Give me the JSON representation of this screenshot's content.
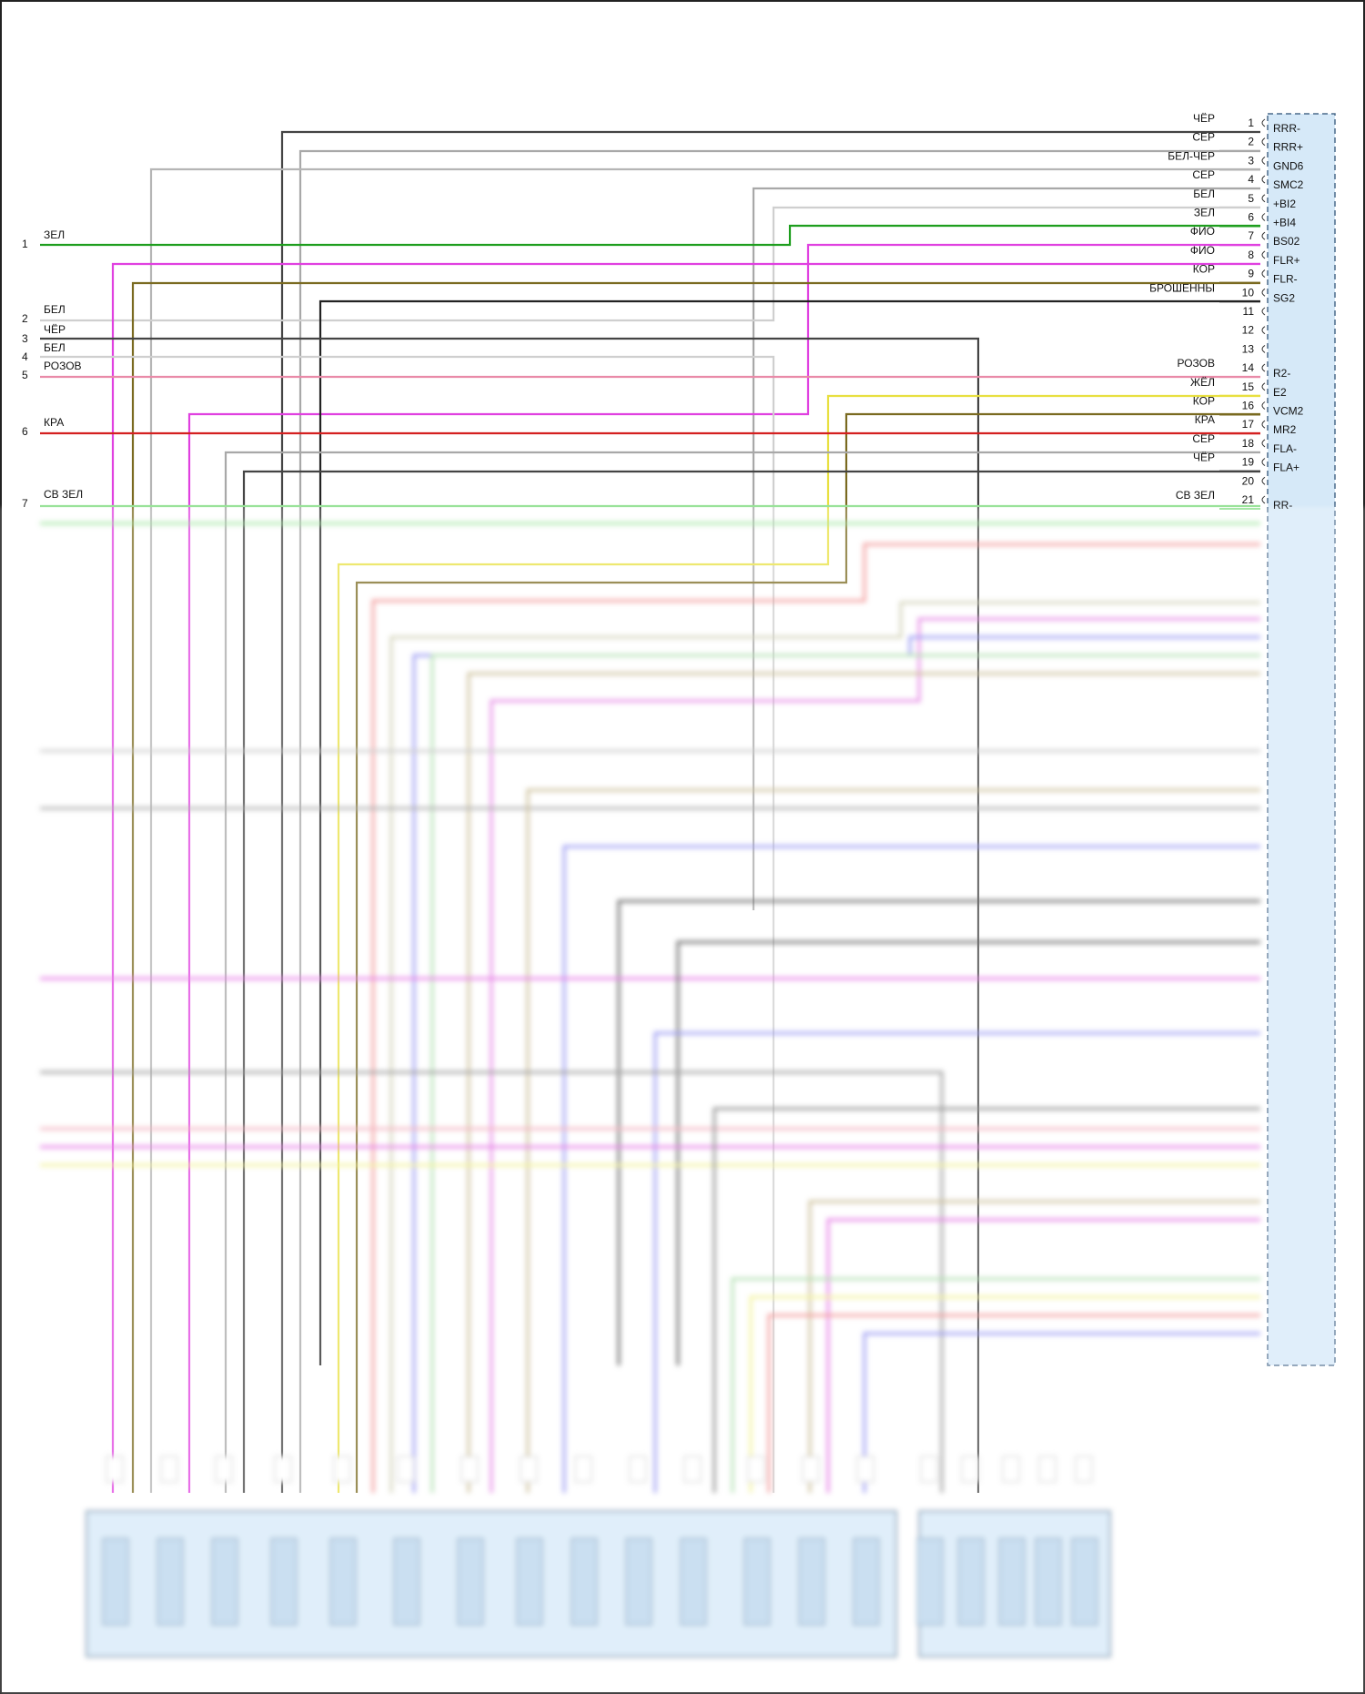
{
  "diagram": {
    "left_connector": {
      "wires": [
        {
          "pin": "1",
          "color_code": "ЗЕЛ",
          "wire_color": "#1e9e1e"
        },
        {
          "pin": "2",
          "color_code": "БЕЛ",
          "wire_color": "#cfcfcf"
        },
        {
          "pin": "3",
          "color_code": "ЧЁР",
          "wire_color": "#444444"
        },
        {
          "pin": "4",
          "color_code": "БЕЛ",
          "wire_color": "#cfcfcf"
        },
        {
          "pin": "5",
          "color_code": "РОЗОВ",
          "wire_color": "#e98aa8"
        },
        {
          "pin": "6",
          "color_code": "КРА",
          "wire_color": "#d42020"
        },
        {
          "pin": "7",
          "color_code": "СВ ЗЕЛ",
          "wire_color": "#8fe08f"
        }
      ]
    },
    "right_connector": {
      "pins": [
        {
          "pin": "1",
          "wire_label": "ЧЁР",
          "signal": "RRR-",
          "wire_color": "#444444"
        },
        {
          "pin": "2",
          "wire_label": "СЕР",
          "signal": "RRR+",
          "wire_color": "#a8a8a8"
        },
        {
          "pin": "3",
          "wire_label": "БЕЛ-ЧЕР",
          "signal": "GND6",
          "wire_color": "#9a9a9a"
        },
        {
          "pin": "4",
          "wire_label": "СЕР",
          "signal": "SMC2",
          "wire_color": "#a8a8a8"
        },
        {
          "pin": "5",
          "wire_label": "БЕЛ",
          "signal": "+BI2",
          "wire_color": "#cfcfcf"
        },
        {
          "pin": "6",
          "wire_label": "ЗЕЛ",
          "signal": "+BI4",
          "wire_color": "#1e9e1e"
        },
        {
          "pin": "7",
          "wire_label": "ФИО",
          "signal": "BS02",
          "wire_color": "#e040e0"
        },
        {
          "pin": "8",
          "wire_label": "ФИО",
          "signal": "FLR+",
          "wire_color": "#e040e0"
        },
        {
          "pin": "9",
          "wire_label": "КОР",
          "signal": "FLR-",
          "wire_color": "#7a6a20"
        },
        {
          "pin": "10",
          "wire_label": "БРОШЕННЫ",
          "signal": "SG2",
          "wire_color": "#222222"
        },
        {
          "pin": "11",
          "wire_label": "",
          "signal": ""
        },
        {
          "pin": "12",
          "wire_label": "",
          "signal": ""
        },
        {
          "pin": "13",
          "wire_label": "",
          "signal": ""
        },
        {
          "pin": "14",
          "wire_label": "РОЗОВ",
          "signal": "R2-",
          "wire_color": "#e98aa8"
        },
        {
          "pin": "15",
          "wire_label": "ЖЁЛ",
          "signal": "E2",
          "wire_color": "#e8e040"
        },
        {
          "pin": "16",
          "wire_label": "КОР",
          "signal": "VCM2",
          "wire_color": "#7a6a20"
        },
        {
          "pin": "17",
          "wire_label": "КРА",
          "signal": "MR2",
          "wire_color": "#d42020"
        },
        {
          "pin": "18",
          "wire_label": "СЕР",
          "signal": "FLA-",
          "wire_color": "#a8a8a8"
        },
        {
          "pin": "19",
          "wire_label": "ЧЁР",
          "signal": "FLA+",
          "wire_color": "#444444"
        },
        {
          "pin": "20",
          "wire_label": "",
          "signal": ""
        },
        {
          "pin": "21",
          "wire_label": "СВ ЗЕЛ",
          "signal": "RR-",
          "wire_color": "#8fe08f"
        }
      ]
    },
    "colors": {
      "module_fill": "#d6e9f8",
      "module_border": "#4a6a8a",
      "lower_area_veil": "#eef4fa"
    }
  }
}
